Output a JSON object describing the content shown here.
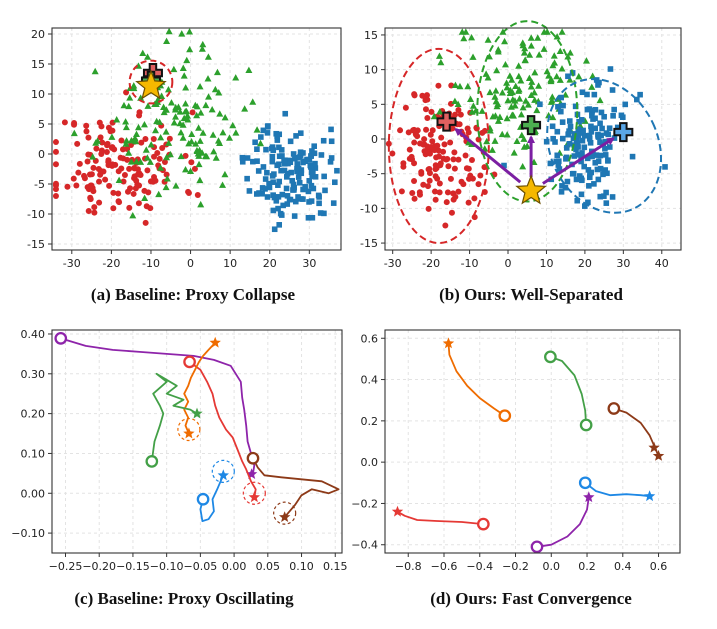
{
  "chart_data": [
    {
      "type": "scatter",
      "caption": "(a) Baseline: Proxy Collapse",
      "xlim": [
        -35,
        38
      ],
      "ylim": [
        -16,
        21
      ],
      "xticks": [
        -30,
        -20,
        -10,
        0,
        10,
        20,
        30
      ],
      "yticks": [
        -15,
        -10,
        -5,
        0,
        5,
        10,
        15,
        20
      ],
      "grid": true,
      "colors": {
        "red": "#d62728",
        "green": "#2ca02c",
        "blue": "#1f77b4",
        "star": "#f5b800",
        "plus": "#4caf50"
      },
      "clusters": [
        {
          "color": "red",
          "shape": "circle",
          "count": 150,
          "center": [
            -18,
            -2
          ],
          "spread": [
            8,
            4.5
          ],
          "seed": 11
        },
        {
          "color": "green",
          "shape": "triangle",
          "count": 150,
          "center": [
            -5,
            5
          ],
          "spread": [
            9,
            6
          ],
          "seed": 23
        },
        {
          "color": "blue",
          "shape": "square",
          "count": 150,
          "center": [
            25,
            -3
          ],
          "spread": [
            5,
            4
          ],
          "seed": 37
        }
      ],
      "proxies": [
        {
          "color": "red",
          "shape": "plus",
          "x": -9.5,
          "y": 13.5
        },
        {
          "color": "green",
          "shape": "plus",
          "x": -10,
          "y": 12.2
        },
        {
          "color": "star",
          "shape": "star",
          "x": -10,
          "y": 11.3
        }
      ],
      "circles": [
        {
          "cx": -10,
          "cy": 12,
          "r": 5.4,
          "color": "red"
        }
      ]
    },
    {
      "type": "scatter",
      "caption": "(b) Ours: Well-Separated",
      "xlim": [
        -32,
        45
      ],
      "ylim": [
        -16,
        16
      ],
      "xticks": [
        -30,
        -20,
        -10,
        0,
        10,
        20,
        30,
        40
      ],
      "yticks": [
        -15,
        -10,
        -5,
        0,
        5,
        10,
        15
      ],
      "grid": true,
      "clusters": [
        {
          "color": "red",
          "shape": "circle",
          "count": 150,
          "center": [
            -18,
            -2
          ],
          "spread": [
            6,
            4.5
          ],
          "seed": 51
        },
        {
          "color": "green",
          "shape": "triangle",
          "count": 150,
          "center": [
            3,
            7
          ],
          "spread": [
            8,
            5
          ],
          "seed": 63
        },
        {
          "color": "blue",
          "shape": "square",
          "count": 150,
          "center": [
            20,
            -1
          ],
          "spread": [
            6,
            4.5
          ],
          "seed": 77
        }
      ],
      "proxies": [
        {
          "color": "red",
          "shape": "plus",
          "x": -16,
          "y": 2.5
        },
        {
          "color": "green",
          "shape": "plus",
          "x": 6,
          "y": 2
        },
        {
          "color": "blue",
          "shape": "plus",
          "x": 30,
          "y": 1
        },
        {
          "color": "star",
          "shape": "star",
          "x": 6,
          "y": -7.5
        }
      ],
      "arrows": [
        {
          "from": [
            6,
            -7.5
          ],
          "to": [
            -16,
            2.5
          ]
        },
        {
          "from": [
            6,
            -7.5
          ],
          "to": [
            6,
            2
          ]
        },
        {
          "from": [
            6,
            -7.5
          ],
          "to": [
            30,
            1
          ]
        }
      ],
      "ellipses": [
        {
          "cx": -18,
          "cy": -1,
          "rx": 13,
          "ry": 14,
          "color": "red"
        },
        {
          "cx": 5,
          "cy": 4,
          "rx": 13,
          "ry": 13,
          "color": "green"
        },
        {
          "cx": 25,
          "cy": -1,
          "rx": 14,
          "ry": 10,
          "color": "blue",
          "angle": -25
        }
      ]
    },
    {
      "type": "line",
      "caption": "(c) Baseline: Proxy Oscillating",
      "xlim": [
        -0.27,
        0.16
      ],
      "ylim": [
        -0.15,
        0.41
      ],
      "xticks": [
        -0.25,
        -0.2,
        -0.15,
        -0.1,
        -0.05,
        0.0,
        0.05,
        0.1,
        0.15
      ],
      "xtick_labels": [
        "−0.25",
        "−0.20",
        "−0.15",
        "−0.10",
        "−0.05",
        "0.00",
        "0.05",
        "0.10",
        "0.15"
      ],
      "yticks": [
        -0.1,
        0.0,
        0.1,
        0.2,
        0.3,
        0.4
      ],
      "ytick_labels": [
        "−0.10",
        "0.00",
        "0.10",
        "0.20",
        "0.30",
        "0.40"
      ],
      "grid": true,
      "series": [
        {
          "color": "#8e24aa",
          "points": [
            [
              -0.257,
              0.389
            ],
            [
              -0.22,
              0.37
            ],
            [
              -0.18,
              0.36
            ],
            [
              -0.14,
              0.355
            ],
            [
              -0.1,
              0.35
            ],
            [
              -0.06,
              0.345
            ],
            [
              -0.03,
              0.335
            ],
            [
              -0.005,
              0.32
            ],
            [
              0.01,
              0.28
            ],
            [
              0.012,
              0.24
            ],
            [
              0.015,
              0.21
            ],
            [
              0.018,
              0.17
            ],
            [
              0.02,
              0.13
            ],
            [
              0.025,
              0.1
            ],
            [
              0.03,
              0.07
            ],
            [
              0.028,
              0.05
            ],
            [
              0.026,
              0.048
            ]
          ],
          "end": "star"
        },
        {
          "color": "#e53935",
          "points": [
            [
              -0.066,
              0.33
            ],
            [
              -0.05,
              0.31
            ],
            [
              -0.04,
              0.28
            ],
            [
              -0.032,
              0.25
            ],
            [
              -0.028,
              0.22
            ],
            [
              -0.022,
              0.19
            ],
            [
              -0.012,
              0.16
            ],
            [
              -0.002,
              0.14
            ],
            [
              0.005,
              0.11
            ],
            [
              0.012,
              0.08
            ],
            [
              0.018,
              0.06
            ],
            [
              0.025,
              0.03
            ],
            [
              0.032,
              0.01
            ],
            [
              0.03,
              -0.01
            ]
          ],
          "end": "star",
          "halo": true
        },
        {
          "color": "#ef6c00",
          "points": [
            [
              -0.028,
              0.378
            ],
            [
              -0.038,
              0.36
            ],
            [
              -0.046,
              0.345
            ],
            [
              -0.052,
              0.33
            ],
            [
              -0.058,
              0.31
            ],
            [
              -0.064,
              0.29
            ],
            [
              -0.068,
              0.27
            ],
            [
              -0.074,
              0.25
            ],
            [
              -0.068,
              0.23
            ],
            [
              -0.074,
              0.21
            ],
            [
              -0.068,
              0.19
            ],
            [
              -0.072,
              0.17
            ],
            [
              -0.067,
              0.15
            ]
          ],
          "start_marker": "star",
          "end": "star",
          "halo": true
        },
        {
          "color": "#43a047",
          "points": [
            [
              -0.122,
              0.08
            ],
            [
              -0.118,
              0.13
            ],
            [
              -0.11,
              0.17
            ],
            [
              -0.105,
              0.2
            ],
            [
              -0.11,
              0.22
            ],
            [
              -0.12,
              0.25
            ],
            [
              -0.1,
              0.28
            ],
            [
              -0.115,
              0.3
            ],
            [
              -0.085,
              0.27
            ],
            [
              -0.1,
              0.25
            ],
            [
              -0.075,
              0.235
            ],
            [
              -0.09,
              0.22
            ],
            [
              -0.065,
              0.21
            ],
            [
              -0.055,
              0.2
            ]
          ],
          "end": "star"
        },
        {
          "color": "#1e88e5",
          "points": [
            [
              -0.046,
              -0.015
            ],
            [
              -0.05,
              -0.04
            ],
            [
              -0.047,
              -0.07
            ],
            [
              -0.038,
              -0.065
            ],
            [
              -0.03,
              -0.045
            ],
            [
              -0.032,
              -0.015
            ],
            [
              -0.025,
              0.01
            ],
            [
              -0.02,
              0.03
            ],
            [
              -0.016,
              0.045
            ]
          ],
          "end": "star",
          "halo": true
        },
        {
          "color": "#8d3a18",
          "points": [
            [
              0.028,
              0.088
            ],
            [
              0.035,
              0.065
            ],
            [
              0.045,
              0.045
            ],
            [
              0.07,
              0.04
            ],
            [
              0.1,
              0.035
            ],
            [
              0.13,
              0.03
            ],
            [
              0.155,
              0.01
            ],
            [
              0.14,
              0.0
            ],
            [
              0.115,
              0.01
            ],
            [
              0.1,
              -0.005
            ],
            [
              0.09,
              -0.03
            ],
            [
              0.08,
              -0.05
            ],
            [
              0.075,
              -0.06
            ]
          ],
          "end": "star",
          "halo": true
        }
      ]
    },
    {
      "type": "line",
      "caption": "(d) Ours: Fast Convergence",
      "xlim": [
        -0.93,
        0.72
      ],
      "ylim": [
        -0.44,
        0.64
      ],
      "xticks": [
        -0.8,
        -0.6,
        -0.4,
        -0.2,
        0.0,
        0.2,
        0.4,
        0.6
      ],
      "xtick_labels": [
        "−0.8",
        "−0.6",
        "−0.4",
        "−0.2",
        "0.0",
        "0.2",
        "0.4",
        "0.6"
      ],
      "yticks": [
        -0.4,
        -0.2,
        0.0,
        0.2,
        0.4,
        0.6
      ],
      "ytick_labels": [
        "−0.4",
        "−0.2",
        "0.0",
        "0.2",
        "0.4",
        "0.6"
      ],
      "grid": true,
      "series": [
        {
          "color": "#ef6c00",
          "points": [
            [
              -0.26,
              0.225
            ],
            [
              -0.32,
              0.26
            ],
            [
              -0.4,
              0.31
            ],
            [
              -0.47,
              0.37
            ],
            [
              -0.53,
              0.44
            ],
            [
              -0.57,
              0.52
            ],
            [
              -0.575,
              0.575
            ]
          ],
          "end": "star"
        },
        {
          "color": "#43a047",
          "points": [
            [
              -0.005,
              0.51
            ],
            [
              0.06,
              0.49
            ],
            [
              0.13,
              0.42
            ],
            [
              0.17,
              0.33
            ],
            [
              0.19,
              0.25
            ],
            [
              0.195,
              0.18
            ]
          ],
          "end": "circle"
        },
        {
          "color": "#8d3a18",
          "points": [
            [
              0.35,
              0.26
            ],
            [
              0.42,
              0.24
            ],
            [
              0.5,
              0.19
            ],
            [
              0.55,
              0.13
            ],
            [
              0.58,
              0.07
            ],
            [
              0.6,
              0.03
            ]
          ],
          "end": "star",
          "extra_star": [
            0.575,
            0.07
          ]
        },
        {
          "color": "#1e88e5",
          "points": [
            [
              0.19,
              -0.1
            ],
            [
              0.25,
              -0.14
            ],
            [
              0.33,
              -0.16
            ],
            [
              0.42,
              -0.155
            ],
            [
              0.5,
              -0.16
            ],
            [
              0.55,
              -0.165
            ]
          ],
          "end": "star"
        },
        {
          "color": "#8e24aa",
          "points": [
            [
              -0.08,
              -0.41
            ],
            [
              0.0,
              -0.4
            ],
            [
              0.09,
              -0.36
            ],
            [
              0.16,
              -0.3
            ],
            [
              0.2,
              -0.23
            ],
            [
              0.21,
              -0.17
            ]
          ],
          "end": "star"
        },
        {
          "color": "#e53935",
          "points": [
            [
              -0.38,
              -0.3
            ],
            [
              -0.5,
              -0.29
            ],
            [
              -0.64,
              -0.285
            ],
            [
              -0.75,
              -0.28
            ],
            [
              -0.82,
              -0.26
            ],
            [
              -0.86,
              -0.24
            ]
          ],
          "end": "star"
        }
      ]
    }
  ]
}
